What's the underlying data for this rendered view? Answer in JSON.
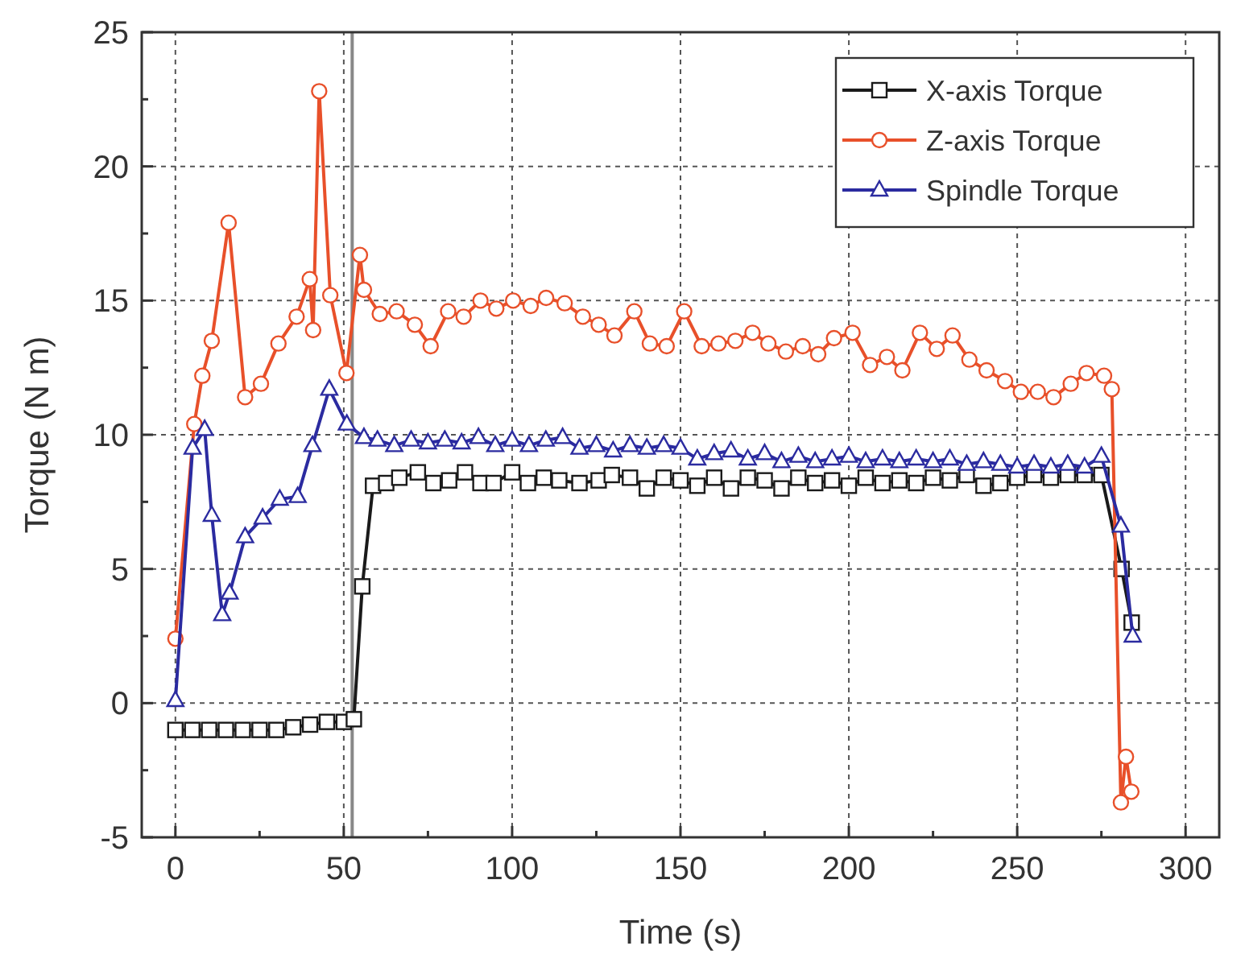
{
  "chart_data": {
    "type": "line",
    "xlabel": "Time (s)",
    "ylabel": "Torque (N m)",
    "xlim": [
      -10,
      310
    ],
    "ylim": [
      -5,
      25
    ],
    "xticks": [
      0,
      {
        "value": 25,
        "label": null
      },
      50,
      {
        "value": 75,
        "label": null
      },
      100,
      {
        "value": 125,
        "label": null
      },
      150,
      {
        "value": 175,
        "label": null
      },
      200,
      {
        "value": 225,
        "label": null
      },
      250,
      {
        "value": 275,
        "label": null
      },
      300
    ],
    "yticks": [
      -5,
      {
        "value": -2.5,
        "label": null
      },
      0,
      {
        "value": 2.5,
        "label": null
      },
      5,
      {
        "value": 7.5,
        "label": null
      },
      10,
      {
        "value": 12.5,
        "label": null
      },
      15,
      {
        "value": 17.5,
        "label": null
      },
      20,
      {
        "value": 22.5,
        "label": null
      },
      25
    ],
    "grid": true,
    "legend": "top right",
    "line_style": "solid",
    "ref_lines": [
      {
        "axis": "x",
        "value": 52.5,
        "color": "#888888",
        "line_style": "solid"
      }
    ],
    "series": [
      {
        "name": "X-axis Torque",
        "marker": "square",
        "color": "#1a1a1a",
        "x": [
          0,
          5,
          10,
          15,
          20,
          25,
          30,
          35,
          40,
          45,
          50,
          53,
          55.5,
          58.7,
          62.6,
          66.5,
          72,
          76.6,
          81.3,
          86,
          90.6,
          94.5,
          100,
          104.7,
          109.4,
          114,
          120,
          125.7,
          129.6,
          135,
          140,
          145,
          150,
          155,
          160,
          165,
          170,
          175,
          180,
          185,
          190,
          195,
          200,
          205,
          210,
          215,
          220,
          225,
          230,
          235,
          240,
          245,
          250,
          255,
          260,
          265,
          270,
          275,
          281,
          284
        ],
        "values": [
          -1.0,
          -1.0,
          -1.0,
          -1.0,
          -1.0,
          -1.0,
          -1.0,
          -0.9,
          -0.8,
          -0.7,
          -0.7,
          -0.6,
          4.35,
          8.1,
          8.2,
          8.4,
          8.6,
          8.2,
          8.3,
          8.6,
          8.2,
          8.2,
          8.6,
          8.2,
          8.4,
          8.3,
          8.2,
          8.3,
          8.5,
          8.4,
          8.0,
          8.4,
          8.3,
          8.1,
          8.4,
          8.0,
          8.4,
          8.3,
          8.0,
          8.4,
          8.2,
          8.3,
          8.1,
          8.4,
          8.2,
          8.3,
          8.2,
          8.4,
          8.3,
          8.5,
          8.1,
          8.2,
          8.4,
          8.5,
          8.4,
          8.5,
          8.5,
          8.5,
          5.0,
          3.0
        ]
      },
      {
        "name": "Z-axis Torque",
        "marker": "circle",
        "color": "#e8502a",
        "x": [
          0,
          5.6,
          8,
          10.8,
          15.8,
          20.7,
          25.4,
          30.6,
          36,
          39.9,
          40.9,
          42.7,
          46,
          50.8,
          54.8,
          56,
          60.7,
          65.7,
          71.1,
          75.8,
          81,
          85.6,
          90.6,
          95.3,
          100.3,
          105.5,
          110.1,
          115.6,
          121,
          125.7,
          130.4,
          136.3,
          140.9,
          145.9,
          151.1,
          156.3,
          161.3,
          166.3,
          171.4,
          176.1,
          181.3,
          186.3,
          190.9,
          195.6,
          201.1,
          206.3,
          211.3,
          215.9,
          221.1,
          226.1,
          230.8,
          235.8,
          240.9,
          246.4,
          251.1,
          256.1,
          260.8,
          265.9,
          270.6,
          275.8,
          278.1,
          280.8,
          282.3,
          283.9
        ],
        "values": [
          2.4,
          10.4,
          12.2,
          13.5,
          17.9,
          11.4,
          11.9,
          13.4,
          14.4,
          15.8,
          13.9,
          22.8,
          15.2,
          12.3,
          16.7,
          15.4,
          14.5,
          14.6,
          14.1,
          13.3,
          14.6,
          14.4,
          15.0,
          14.7,
          15.0,
          14.8,
          15.1,
          14.9,
          14.4,
          14.1,
          13.7,
          14.6,
          13.4,
          13.3,
          14.6,
          13.3,
          13.4,
          13.5,
          13.8,
          13.4,
          13.1,
          13.3,
          13.0,
          13.6,
          13.8,
          12.6,
          12.9,
          12.4,
          13.8,
          13.2,
          13.7,
          12.8,
          12.4,
          12.0,
          11.6,
          11.6,
          11.4,
          11.9,
          12.3,
          12.2,
          11.7,
          -3.7,
          -2.0,
          -3.3
        ]
      },
      {
        "name": "Spindle Torque",
        "marker": "triangle",
        "color": "#2b2ba0",
        "x": [
          0,
          5.1,
          8.7,
          10.8,
          13.9,
          16.1,
          20.7,
          25.9,
          31,
          36.3,
          40.7,
          45.7,
          50.9,
          56,
          60,
          65,
          70,
          75,
          80,
          85,
          90,
          95,
          100,
          105,
          110,
          115,
          120,
          125,
          130,
          135,
          140,
          145,
          150,
          155,
          160,
          165,
          170,
          175,
          180,
          185,
          190,
          195,
          200,
          205,
          210,
          215,
          220,
          225,
          230,
          235,
          240,
          245,
          250,
          255,
          260,
          265,
          270,
          275,
          280.8,
          284.3
        ],
        "values": [
          0.1,
          9.5,
          10.2,
          7.0,
          3.3,
          4.1,
          6.2,
          6.9,
          7.6,
          7.7,
          9.6,
          11.7,
          10.4,
          9.9,
          9.8,
          9.6,
          9.8,
          9.7,
          9.8,
          9.7,
          9.9,
          9.6,
          9.8,
          9.6,
          9.8,
          9.9,
          9.5,
          9.6,
          9.4,
          9.6,
          9.5,
          9.6,
          9.5,
          9.1,
          9.3,
          9.4,
          9.1,
          9.3,
          9.0,
          9.2,
          9.0,
          9.1,
          9.2,
          9.0,
          9.1,
          9.0,
          9.1,
          9.0,
          9.1,
          8.9,
          9.0,
          8.9,
          8.8,
          8.9,
          8.8,
          8.9,
          8.8,
          9.2,
          6.6,
          2.5
        ]
      }
    ]
  }
}
